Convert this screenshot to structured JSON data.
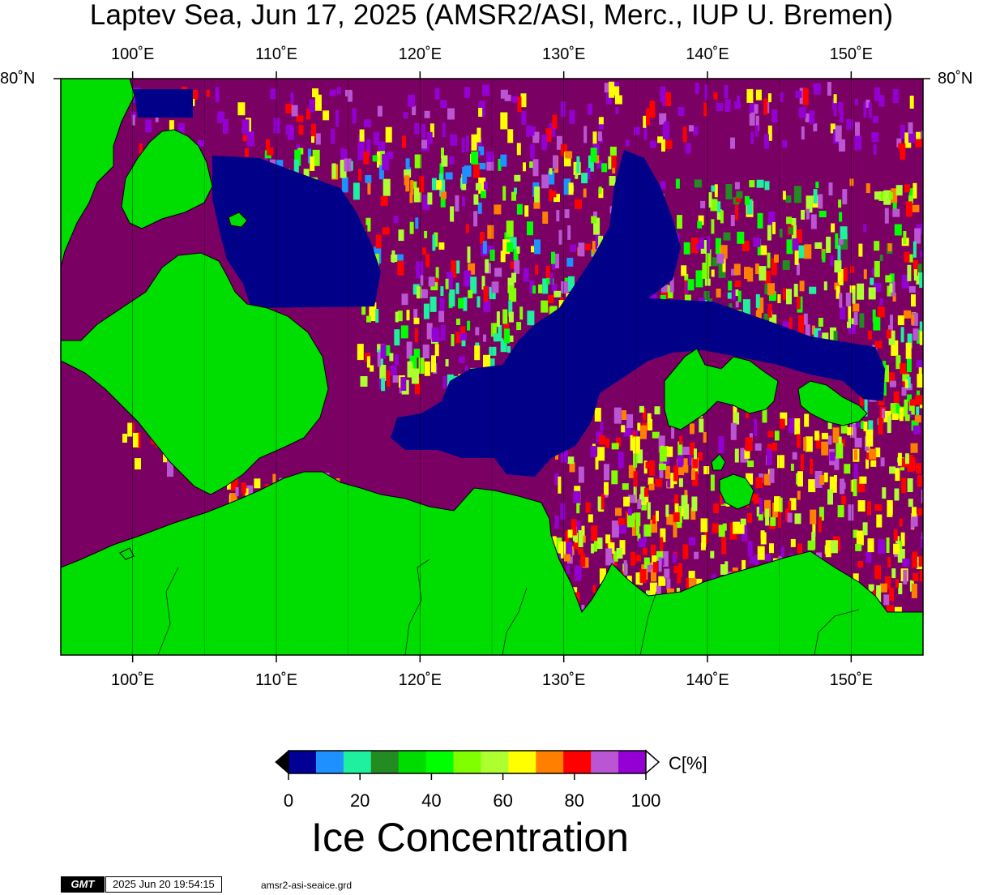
{
  "title": "Laptev Sea, Jun 17, 2025 (AMSR2/ASI, Merc., IUP U. Bremen)",
  "map": {
    "projection": "Mercator",
    "lon_range": [
      95,
      155
    ],
    "lon_ticks": [
      {
        "value": 100,
        "label": "100˚E"
      },
      {
        "value": 110,
        "label": "110˚E"
      },
      {
        "value": 120,
        "label": "120˚E"
      },
      {
        "value": 130,
        "label": "130˚E"
      },
      {
        "value": 140,
        "label": "140˚E"
      },
      {
        "value": 150,
        "label": "150˚E"
      }
    ],
    "lat_label_left": "80˚N",
    "lat_label_right": "80˚N",
    "colors": {
      "ocean": "#7a0063",
      "land": "#00dd00",
      "open_water": "#000088"
    }
  },
  "colorbar": {
    "colors": [
      "#000096",
      "#1e90ff",
      "#1ef0a0",
      "#228b22",
      "#00dc00",
      "#00ff00",
      "#7fff00",
      "#adff2f",
      "#ffff00",
      "#ff7f00",
      "#ff0000",
      "#ba55d3",
      "#9400d3"
    ],
    "ticks": [
      {
        "value": 0,
        "label": "0"
      },
      {
        "value": 20,
        "label": "20"
      },
      {
        "value": 40,
        "label": "40"
      },
      {
        "value": 60,
        "label": "60"
      },
      {
        "value": 80,
        "label": "80"
      },
      {
        "value": 100,
        "label": "100"
      }
    ],
    "unit_label": "C[%]",
    "caption": "Ice Concentration"
  },
  "footer": {
    "logo": "GMT",
    "timestamp": "2025 Jun 20 19:54:15",
    "grid_file": "amsr2-asi-seaice.grd"
  }
}
